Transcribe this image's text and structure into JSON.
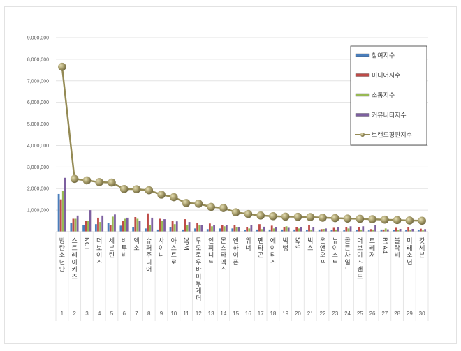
{
  "chart_data": {
    "type": "bar+line",
    "title": "",
    "xlabel": "",
    "ylabel": "",
    "ylim": [
      0,
      9000000
    ],
    "yticks": [
      "-",
      "1,000,000",
      "2,000,000",
      "3,000,000",
      "4,000,000",
      "5,000,000",
      "6,000,000",
      "7,000,000",
      "8,000,000",
      "9,000,000"
    ],
    "grid": true,
    "legend_position": "right-top",
    "ranks": [
      1,
      2,
      3,
      4,
      5,
      6,
      7,
      8,
      9,
      10,
      11,
      12,
      13,
      14,
      15,
      16,
      17,
      18,
      19,
      20,
      21,
      22,
      23,
      24,
      25,
      26,
      27,
      28,
      29,
      30
    ],
    "categories": [
      "방탄소년단",
      "스트레이키즈",
      "NCT",
      "더보이즈",
      "세븐틴",
      "비투비",
      "엑소",
      "슈퍼주니어",
      "샤이니",
      "아스트로",
      "2PM",
      "투모로우바이투게더",
      "인피니트",
      "몬스타엑스",
      "엔하이픈",
      "위너",
      "펜타곤",
      "에이티즈",
      "빅뱅",
      "SF9",
      "빅스",
      "온앤오프",
      "뉴이스트",
      "골든차일드",
      "더보이즈랜드",
      "트레저",
      "B1A4",
      "블락비",
      "미래소년",
      "갓세븐"
    ],
    "series": [
      {
        "name": "참여지수",
        "type": "bar",
        "color": "#4a7ebb",
        "values": [
          1750000,
          400000,
          300000,
          350000,
          400000,
          280000,
          200000,
          150000,
          100000,
          200000,
          100000,
          150000,
          120000,
          150000,
          150000,
          80000,
          100000,
          100000,
          100000,
          100000,
          80000,
          100000,
          80000,
          60000,
          90000,
          60000,
          100000,
          80000,
          70000,
          70000
        ]
      },
      {
        "name": "미디어지수",
        "type": "bar",
        "color": "#be4b48",
        "values": [
          1500000,
          600000,
          500000,
          650000,
          300000,
          500000,
          680000,
          850000,
          600000,
          500000,
          580000,
          400000,
          380000,
          300000,
          300000,
          200000,
          350000,
          280000,
          200000,
          200000,
          300000,
          120000,
          180000,
          200000,
          220000,
          120000,
          100000,
          180000,
          200000,
          140000
        ]
      },
      {
        "name": "소통지수",
        "type": "bar",
        "color": "#98b954",
        "values": [
          1900000,
          600000,
          500000,
          450000,
          700000,
          600000,
          600000,
          300000,
          500000,
          350000,
          300000,
          300000,
          250000,
          250000,
          200000,
          150000,
          120000,
          150000,
          250000,
          150000,
          100000,
          130000,
          100000,
          150000,
          100000,
          100000,
          150000,
          80000,
          80000,
          60000
        ]
      },
      {
        "name": "커뮤니티지수",
        "type": "bar",
        "color": "#7d60a0",
        "values": [
          2500000,
          750000,
          1000000,
          750000,
          800000,
          650000,
          500000,
          650000,
          580000,
          480000,
          450000,
          300000,
          300000,
          300000,
          220000,
          300000,
          230000,
          220000,
          180000,
          200000,
          220000,
          150000,
          200000,
          250000,
          250000,
          300000,
          110000,
          130000,
          130000,
          120000
        ]
      },
      {
        "name": "브랜드평판지수",
        "type": "line",
        "color": "#948a54",
        "values": [
          7650000,
          2450000,
          2380000,
          2300000,
          2280000,
          1980000,
          1970000,
          1920000,
          1720000,
          1600000,
          1330000,
          1300000,
          1150000,
          1100000,
          900000,
          820000,
          750000,
          720000,
          700000,
          690000,
          680000,
          650000,
          630000,
          610000,
          600000,
          580000,
          560000,
          540000,
          520000,
          510000
        ]
      }
    ]
  },
  "legend": {
    "items": [
      {
        "label": "참여지수",
        "color": "#4a7ebb",
        "kind": "bar"
      },
      {
        "label": "미디어지수",
        "color": "#be4b48",
        "kind": "bar"
      },
      {
        "label": "소통지수",
        "color": "#98b954",
        "kind": "bar"
      },
      {
        "label": "커뮤니티지수",
        "color": "#7d60a0",
        "kind": "bar"
      },
      {
        "label": "브랜드평판지수",
        "color": "#948a54",
        "kind": "line"
      }
    ]
  }
}
